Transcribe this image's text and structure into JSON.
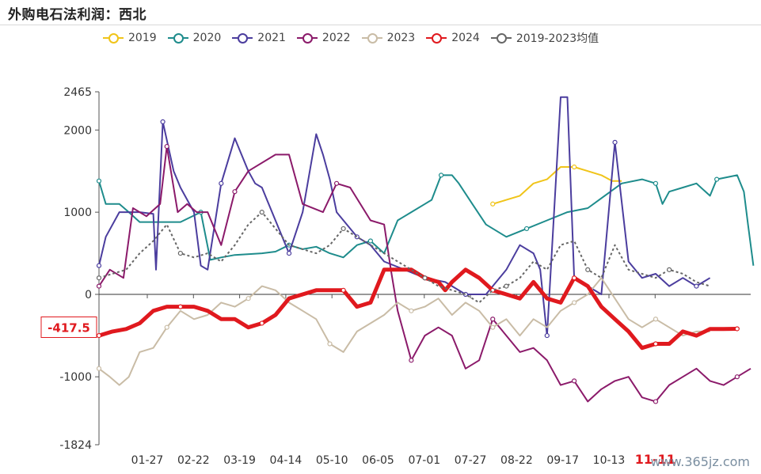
{
  "page": {
    "title": "外购电石法利润：西北",
    "watermark": "www.365jz.com"
  },
  "chart_data": {
    "type": "line",
    "title": "外购电石法利润：西北",
    "yticks": [
      2465,
      2000,
      1000,
      0,
      -1000,
      -1824
    ],
    "ylim": [
      -1824,
      2465
    ],
    "x_tick_labels": [
      "01-27",
      "02-22",
      "03-19",
      "04-14",
      "05-10",
      "06-05",
      "07-01",
      "07-27",
      "08-22",
      "09-17",
      "10-13",
      "11-11"
    ],
    "highlight_x_label": "11-11",
    "current_value_label": "-417.5",
    "legend_position": "top",
    "grid": false,
    "series": [
      {
        "name": "2019",
        "color": "#f0c419",
        "points": [
          [
            290,
            1100
          ],
          [
            300,
            1150
          ],
          [
            310,
            1200
          ],
          [
            320,
            1350
          ],
          [
            330,
            1400
          ],
          [
            340,
            1550
          ],
          [
            350,
            1550
          ],
          [
            360,
            1500
          ],
          [
            370,
            1450
          ],
          [
            378,
            1380
          ],
          [
            385,
            1380
          ]
        ]
      },
      {
        "name": "2020",
        "color": "#1e8c8c",
        "points": [
          [
            0,
            1380
          ],
          [
            5,
            1100
          ],
          [
            15,
            1100
          ],
          [
            22,
            1000
          ],
          [
            30,
            880
          ],
          [
            60,
            880
          ],
          [
            75,
            1000
          ],
          [
            82,
            420
          ],
          [
            90,
            450
          ],
          [
            100,
            480
          ],
          [
            120,
            500
          ],
          [
            130,
            520
          ],
          [
            140,
            600
          ],
          [
            150,
            550
          ],
          [
            160,
            580
          ],
          [
            170,
            500
          ],
          [
            180,
            450
          ],
          [
            190,
            600
          ],
          [
            200,
            650
          ],
          [
            210,
            500
          ],
          [
            220,
            900
          ],
          [
            230,
            1000
          ],
          [
            240,
            1100
          ],
          [
            245,
            1150
          ],
          [
            252,
            1450
          ],
          [
            260,
            1450
          ],
          [
            265,
            1350
          ],
          [
            275,
            1100
          ],
          [
            285,
            850
          ],
          [
            300,
            700
          ],
          [
            315,
            800
          ],
          [
            330,
            900
          ],
          [
            345,
            1000
          ],
          [
            360,
            1050
          ],
          [
            385,
            1350
          ],
          [
            400,
            1400
          ],
          [
            410,
            1350
          ],
          [
            415,
            1100
          ],
          [
            420,
            1250
          ],
          [
            430,
            1300
          ],
          [
            440,
            1350
          ],
          [
            450,
            1200
          ],
          [
            455,
            1400
          ],
          [
            470,
            1450
          ],
          [
            475,
            1250
          ],
          [
            478,
            850
          ],
          [
            482,
            350
          ]
        ]
      },
      {
        "name": "2021",
        "color": "#4b3d9e",
        "points": [
          [
            0,
            350
          ],
          [
            5,
            700
          ],
          [
            15,
            1000
          ],
          [
            30,
            1000
          ],
          [
            40,
            980
          ],
          [
            42,
            300
          ],
          [
            47,
            2100
          ],
          [
            55,
            1500
          ],
          [
            60,
            1300
          ],
          [
            70,
            1000
          ],
          [
            75,
            350
          ],
          [
            80,
            300
          ],
          [
            90,
            1350
          ],
          [
            100,
            1900
          ],
          [
            110,
            1500
          ],
          [
            115,
            1350
          ],
          [
            120,
            1300
          ],
          [
            125,
            1100
          ],
          [
            140,
            500
          ],
          [
            150,
            1000
          ],
          [
            160,
            1950
          ],
          [
            165,
            1700
          ],
          [
            170,
            1400
          ],
          [
            175,
            1000
          ],
          [
            190,
            700
          ],
          [
            200,
            600
          ],
          [
            210,
            400
          ],
          [
            225,
            300
          ],
          [
            240,
            200
          ],
          [
            255,
            150
          ],
          [
            270,
            0
          ],
          [
            285,
            0
          ],
          [
            300,
            300
          ],
          [
            310,
            600
          ],
          [
            320,
            500
          ],
          [
            325,
            300
          ],
          [
            330,
            -500
          ],
          [
            340,
            2400
          ],
          [
            345,
            2400
          ],
          [
            350,
            200
          ],
          [
            360,
            100
          ],
          [
            370,
            0
          ],
          [
            380,
            1850
          ],
          [
            390,
            400
          ],
          [
            400,
            200
          ],
          [
            410,
            250
          ],
          [
            420,
            100
          ],
          [
            430,
            200
          ],
          [
            440,
            100
          ],
          [
            450,
            200
          ]
        ]
      },
      {
        "name": "2022",
        "color": "#8b1a6a",
        "points": [
          [
            0,
            100
          ],
          [
            8,
            300
          ],
          [
            18,
            200
          ],
          [
            25,
            1050
          ],
          [
            35,
            950
          ],
          [
            45,
            1100
          ],
          [
            50,
            1800
          ],
          [
            58,
            1000
          ],
          [
            65,
            1100
          ],
          [
            72,
            1000
          ],
          [
            80,
            1000
          ],
          [
            90,
            600
          ],
          [
            100,
            1250
          ],
          [
            110,
            1500
          ],
          [
            130,
            1700
          ],
          [
            140,
            1700
          ],
          [
            150,
            1100
          ],
          [
            165,
            1000
          ],
          [
            175,
            1350
          ],
          [
            185,
            1300
          ],
          [
            200,
            900
          ],
          [
            210,
            850
          ],
          [
            215,
            300
          ],
          [
            220,
            -200
          ],
          [
            230,
            -800
          ],
          [
            240,
            -500
          ],
          [
            250,
            -400
          ],
          [
            260,
            -500
          ],
          [
            270,
            -900
          ],
          [
            280,
            -800
          ],
          [
            290,
            -300
          ],
          [
            300,
            -500
          ],
          [
            310,
            -700
          ],
          [
            320,
            -650
          ],
          [
            330,
            -800
          ],
          [
            340,
            -1100
          ],
          [
            350,
            -1050
          ],
          [
            360,
            -1300
          ],
          [
            370,
            -1150
          ],
          [
            380,
            -1050
          ],
          [
            390,
            -1000
          ],
          [
            400,
            -1250
          ],
          [
            410,
            -1300
          ],
          [
            420,
            -1100
          ],
          [
            430,
            -1000
          ],
          [
            440,
            -900
          ],
          [
            450,
            -1050
          ],
          [
            460,
            -1100
          ],
          [
            470,
            -1000
          ],
          [
            480,
            -900
          ]
        ]
      },
      {
        "name": "2023",
        "color": "#c9bca6",
        "points": [
          [
            0,
            -900
          ],
          [
            8,
            -1000
          ],
          [
            15,
            -1100
          ],
          [
            22,
            -1000
          ],
          [
            30,
            -700
          ],
          [
            40,
            -650
          ],
          [
            50,
            -400
          ],
          [
            60,
            -200
          ],
          [
            70,
            -300
          ],
          [
            80,
            -250
          ],
          [
            90,
            -100
          ],
          [
            100,
            -150
          ],
          [
            110,
            -50
          ],
          [
            120,
            100
          ],
          [
            130,
            50
          ],
          [
            140,
            -100
          ],
          [
            150,
            -200
          ],
          [
            160,
            -300
          ],
          [
            170,
            -600
          ],
          [
            180,
            -700
          ],
          [
            190,
            -450
          ],
          [
            200,
            -350
          ],
          [
            210,
            -250
          ],
          [
            220,
            -100
          ],
          [
            230,
            -200
          ],
          [
            240,
            -150
          ],
          [
            250,
            -50
          ],
          [
            260,
            -250
          ],
          [
            270,
            -100
          ],
          [
            280,
            -200
          ],
          [
            290,
            -400
          ],
          [
            300,
            -300
          ],
          [
            310,
            -500
          ],
          [
            320,
            -300
          ],
          [
            330,
            -400
          ],
          [
            340,
            -200
          ],
          [
            350,
            -100
          ],
          [
            360,
            0
          ],
          [
            370,
            200
          ],
          [
            380,
            -50
          ],
          [
            390,
            -300
          ],
          [
            400,
            -400
          ],
          [
            410,
            -300
          ],
          [
            420,
            -400
          ],
          [
            430,
            -500
          ],
          [
            440,
            -450
          ],
          [
            450,
            -450
          ]
        ]
      },
      {
        "name": "2024",
        "color": "#e0191e",
        "points": [
          [
            0,
            -500
          ],
          [
            10,
            -450
          ],
          [
            20,
            -420
          ],
          [
            30,
            -350
          ],
          [
            40,
            -200
          ],
          [
            50,
            -150
          ],
          [
            60,
            -150
          ],
          [
            70,
            -150
          ],
          [
            80,
            -200
          ],
          [
            90,
            -300
          ],
          [
            100,
            -300
          ],
          [
            110,
            -400
          ],
          [
            120,
            -350
          ],
          [
            130,
            -250
          ],
          [
            140,
            -50
          ],
          [
            150,
            0
          ],
          [
            160,
            50
          ],
          [
            170,
            50
          ],
          [
            180,
            50
          ],
          [
            190,
            -150
          ],
          [
            200,
            -100
          ],
          [
            210,
            300
          ],
          [
            220,
            300
          ],
          [
            230,
            300
          ],
          [
            240,
            200
          ],
          [
            250,
            150
          ],
          [
            255,
            50
          ],
          [
            260,
            150
          ],
          [
            270,
            300
          ],
          [
            280,
            200
          ],
          [
            290,
            50
          ],
          [
            300,
            0
          ],
          [
            310,
            -50
          ],
          [
            320,
            150
          ],
          [
            330,
            -50
          ],
          [
            340,
            -100
          ],
          [
            350,
            200
          ],
          [
            360,
            100
          ],
          [
            370,
            -150
          ],
          [
            380,
            -300
          ],
          [
            390,
            -450
          ],
          [
            400,
            -650
          ],
          [
            410,
            -600
          ],
          [
            420,
            -600
          ],
          [
            430,
            -450
          ],
          [
            440,
            -500
          ],
          [
            450,
            -420
          ],
          [
            460,
            -420
          ],
          [
            470,
            -417.5
          ]
        ]
      },
      {
        "name": "2019-2023均值",
        "color": "#666666",
        "dashed": true,
        "points": [
          [
            0,
            200
          ],
          [
            10,
            250
          ],
          [
            20,
            300
          ],
          [
            30,
            500
          ],
          [
            40,
            650
          ],
          [
            50,
            850
          ],
          [
            60,
            500
          ],
          [
            70,
            450
          ],
          [
            80,
            500
          ],
          [
            90,
            400
          ],
          [
            100,
            600
          ],
          [
            110,
            850
          ],
          [
            120,
            1000
          ],
          [
            130,
            800
          ],
          [
            140,
            600
          ],
          [
            150,
            550
          ],
          [
            160,
            500
          ],
          [
            170,
            600
          ],
          [
            180,
            800
          ],
          [
            190,
            700
          ],
          [
            200,
            600
          ],
          [
            210,
            500
          ],
          [
            220,
            400
          ],
          [
            230,
            300
          ],
          [
            240,
            200
          ],
          [
            250,
            100
          ],
          [
            260,
            50
          ],
          [
            270,
            0
          ],
          [
            280,
            -100
          ],
          [
            290,
            50
          ],
          [
            300,
            100
          ],
          [
            310,
            200
          ],
          [
            320,
            400
          ],
          [
            330,
            300
          ],
          [
            340,
            600
          ],
          [
            350,
            650
          ],
          [
            360,
            300
          ],
          [
            370,
            200
          ],
          [
            380,
            600
          ],
          [
            390,
            300
          ],
          [
            400,
            250
          ],
          [
            410,
            200
          ],
          [
            420,
            300
          ],
          [
            430,
            250
          ],
          [
            440,
            150
          ],
          [
            450,
            100
          ]
        ]
      }
    ]
  }
}
